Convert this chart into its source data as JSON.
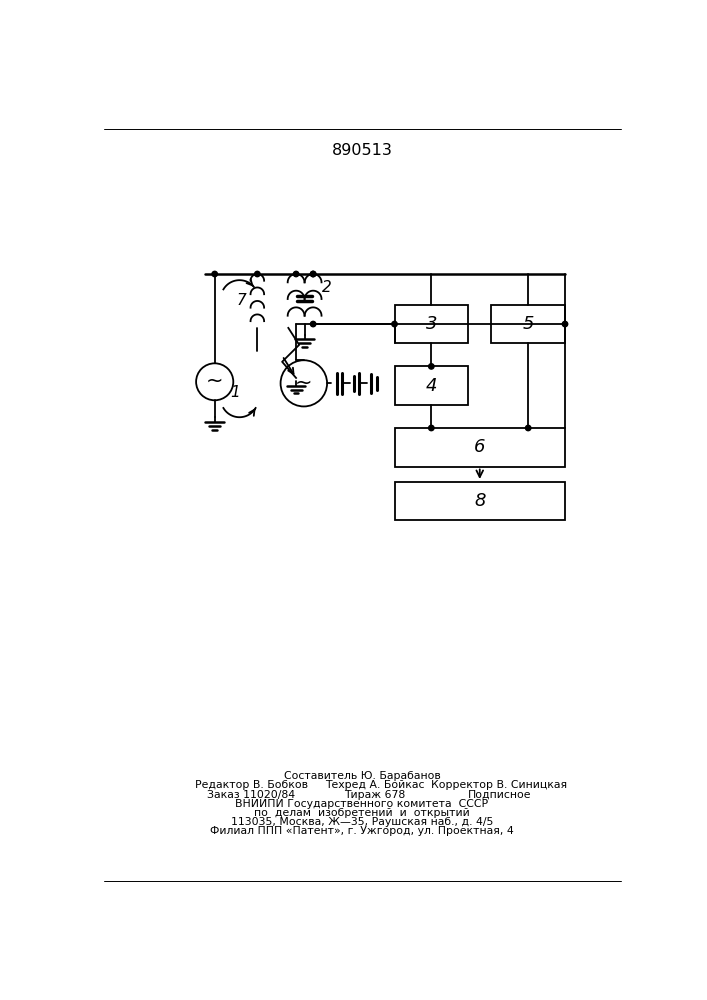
{
  "title": "890513",
  "background_color": "#ffffff",
  "line_color": "#000000",
  "line_width": 1.3,
  "footer_lines": [
    [
      "Составитель Ю. Барабанов",
      353,
      148
    ],
    [
      "Редактор В. Бобков",
      210,
      136
    ],
    [
      "Техред А. Бойкас",
      370,
      136
    ],
    [
      "Корректор В. Синицкая",
      530,
      136
    ],
    [
      "Заказ 11020/84",
      210,
      124
    ],
    [
      "Тираж 678",
      370,
      124
    ],
    [
      "Подписное",
      530,
      124
    ],
    [
      "ВНИИПИ Государственного комитета  СССР",
      353,
      112
    ],
    [
      "по  делам  изобретений  и  открытий",
      353,
      100
    ],
    [
      "113035, Москва, Ж—35, Раушская наб., д. 4/5",
      353,
      88
    ],
    [
      "Филиал ППП «Патент», г. Ужгород, ул. Проектная, 4",
      353,
      76
    ]
  ],
  "footer_fontsize": 7.8
}
